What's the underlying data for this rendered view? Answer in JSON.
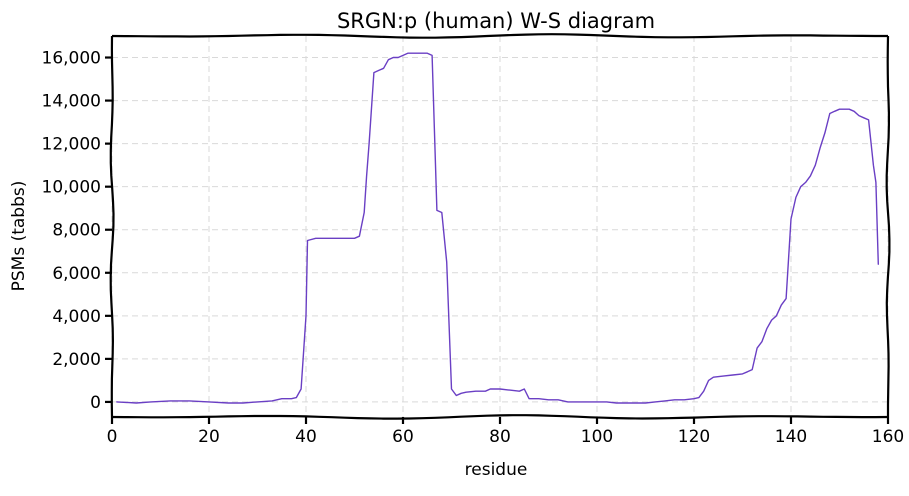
{
  "chart_data": {
    "type": "line",
    "title": "SRGN:p (human) W-S diagram",
    "xlabel": "residue",
    "ylabel": "PSMs (tabbs)",
    "xlim": [
      0,
      160
    ],
    "ylim": [
      -700,
      17000
    ],
    "grid": true,
    "style": "hand-drawn",
    "x_ticks": [
      {
        "value": 0,
        "label": "0"
      },
      {
        "value": 20,
        "label": "20"
      },
      {
        "value": 40,
        "label": "40"
      },
      {
        "value": 60,
        "label": "60"
      },
      {
        "value": 80,
        "label": "80"
      },
      {
        "value": 100,
        "label": "100"
      },
      {
        "value": 120,
        "label": "120"
      },
      {
        "value": 140,
        "label": "140"
      },
      {
        "value": 160,
        "label": "160"
      }
    ],
    "y_ticks": [
      {
        "value": 0,
        "label": "0"
      },
      {
        "value": 2000,
        "label": "2,000"
      },
      {
        "value": 4000,
        "label": "4,000"
      },
      {
        "value": 6000,
        "label": "6,000"
      },
      {
        "value": 8000,
        "label": "8,000"
      },
      {
        "value": 10000,
        "label": "10,000"
      },
      {
        "value": 12000,
        "label": "12,000"
      },
      {
        "value": 14000,
        "label": "14,000"
      },
      {
        "value": 16000,
        "label": "16,000"
      }
    ],
    "series": [
      {
        "color": "#6a3fc4",
        "x": [
          1,
          5,
          8,
          12,
          16,
          20,
          24,
          27,
          30,
          33,
          35,
          37,
          38,
          39,
          40,
          40.3,
          42,
          44,
          46,
          48,
          50,
          51,
          52,
          52.5,
          53,
          54,
          55,
          56,
          57,
          58,
          59,
          60,
          61,
          62,
          63,
          64,
          65,
          66,
          67,
          68,
          69,
          70,
          71,
          72,
          73,
          75,
          77,
          78,
          80,
          82,
          84,
          85,
          86,
          88,
          90,
          92,
          94,
          96,
          98,
          100,
          102,
          104,
          106,
          108,
          110,
          112,
          114,
          116,
          118,
          120,
          121,
          122,
          123,
          124,
          126,
          128,
          130,
          131,
          132,
          133,
          134,
          135,
          136,
          137,
          138,
          139,
          140,
          141,
          142,
          143,
          144,
          145,
          146,
          147,
          148,
          149,
          150,
          151,
          152,
          153,
          154,
          155,
          156,
          157,
          157.5,
          158
        ],
        "y": [
          0,
          -50,
          0,
          50,
          50,
          0,
          -50,
          -50,
          0,
          50,
          150,
          150,
          200,
          600,
          4000,
          7500,
          7600,
          7600,
          7600,
          7600,
          7600,
          7700,
          8800,
          10500,
          12000,
          15300,
          15400,
          15500,
          15900,
          16000,
          16000,
          16100,
          16200,
          16200,
          16200,
          16200,
          16200,
          16100,
          8900,
          8800,
          6500,
          600,
          300,
          400,
          450,
          500,
          500,
          600,
          600,
          550,
          500,
          600,
          150,
          150,
          100,
          100,
          0,
          0,
          0,
          0,
          0,
          -50,
          -50,
          -50,
          -50,
          0,
          50,
          100,
          100,
          150,
          200,
          500,
          1000,
          1150,
          1200,
          1250,
          1300,
          1400,
          1500,
          2500,
          2800,
          3400,
          3800,
          4000,
          4500,
          4800,
          8500,
          9500,
          10000,
          10200,
          10500,
          11000,
          11800,
          12500,
          13400,
          13500,
          13600,
          13600,
          13600,
          13500,
          13300,
          13200,
          13100,
          11000,
          10200,
          6400
        ]
      }
    ]
  }
}
